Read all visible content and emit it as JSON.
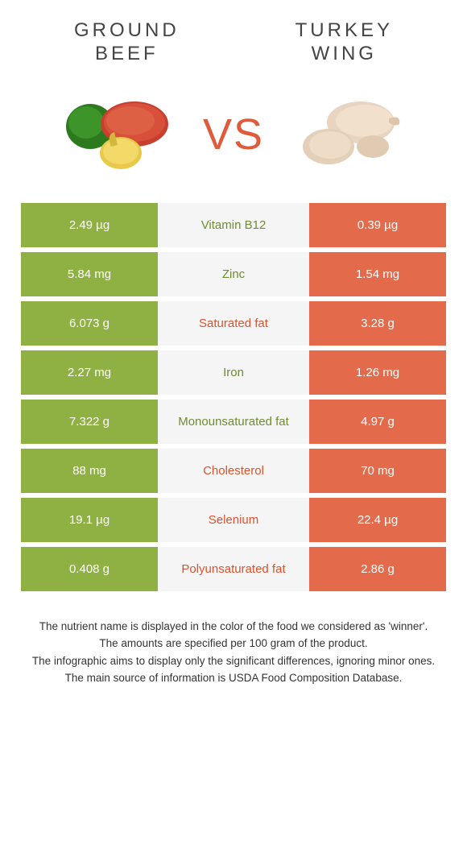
{
  "colors": {
    "left_bg": "#8fb043",
    "right_bg": "#e36a4b",
    "mid_bg": "#f5f5f5",
    "winner_left": "#6f8c2f",
    "winner_right": "#d9532f",
    "vs": "#e05a3c"
  },
  "foods": {
    "left": {
      "title_line1": "GROUND",
      "title_line2": "BEEF"
    },
    "right": {
      "title_line1": "TURKEY",
      "title_line2": "WING"
    }
  },
  "vs_label": "VS",
  "rows": [
    {
      "left": "2.49 µg",
      "label": "Vitamin B12",
      "right": "0.39 µg",
      "winner": "left"
    },
    {
      "left": "5.84 mg",
      "label": "Zinc",
      "right": "1.54 mg",
      "winner": "left"
    },
    {
      "left": "6.073 g",
      "label": "Saturated fat",
      "right": "3.28 g",
      "winner": "right"
    },
    {
      "left": "2.27 mg",
      "label": "Iron",
      "right": "1.26 mg",
      "winner": "left"
    },
    {
      "left": "7.322 g",
      "label": "Monounsaturated fat",
      "right": "4.97 g",
      "winner": "left"
    },
    {
      "left": "88 mg",
      "label": "Cholesterol",
      "right": "70 mg",
      "winner": "right"
    },
    {
      "left": "19.1 µg",
      "label": "Selenium",
      "right": "22.4 µg",
      "winner": "right"
    },
    {
      "left": "0.408 g",
      "label": "Polyunsaturated fat",
      "right": "2.86 g",
      "winner": "right"
    }
  ],
  "footnotes": [
    "The nutrient name is displayed in the color of the food we considered as 'winner'.",
    "The amounts are specified per 100 gram of the product.",
    "The infographic aims to display only the significant differences, ignoring minor ones.",
    "The main source of information is USDA Food Composition Database."
  ]
}
